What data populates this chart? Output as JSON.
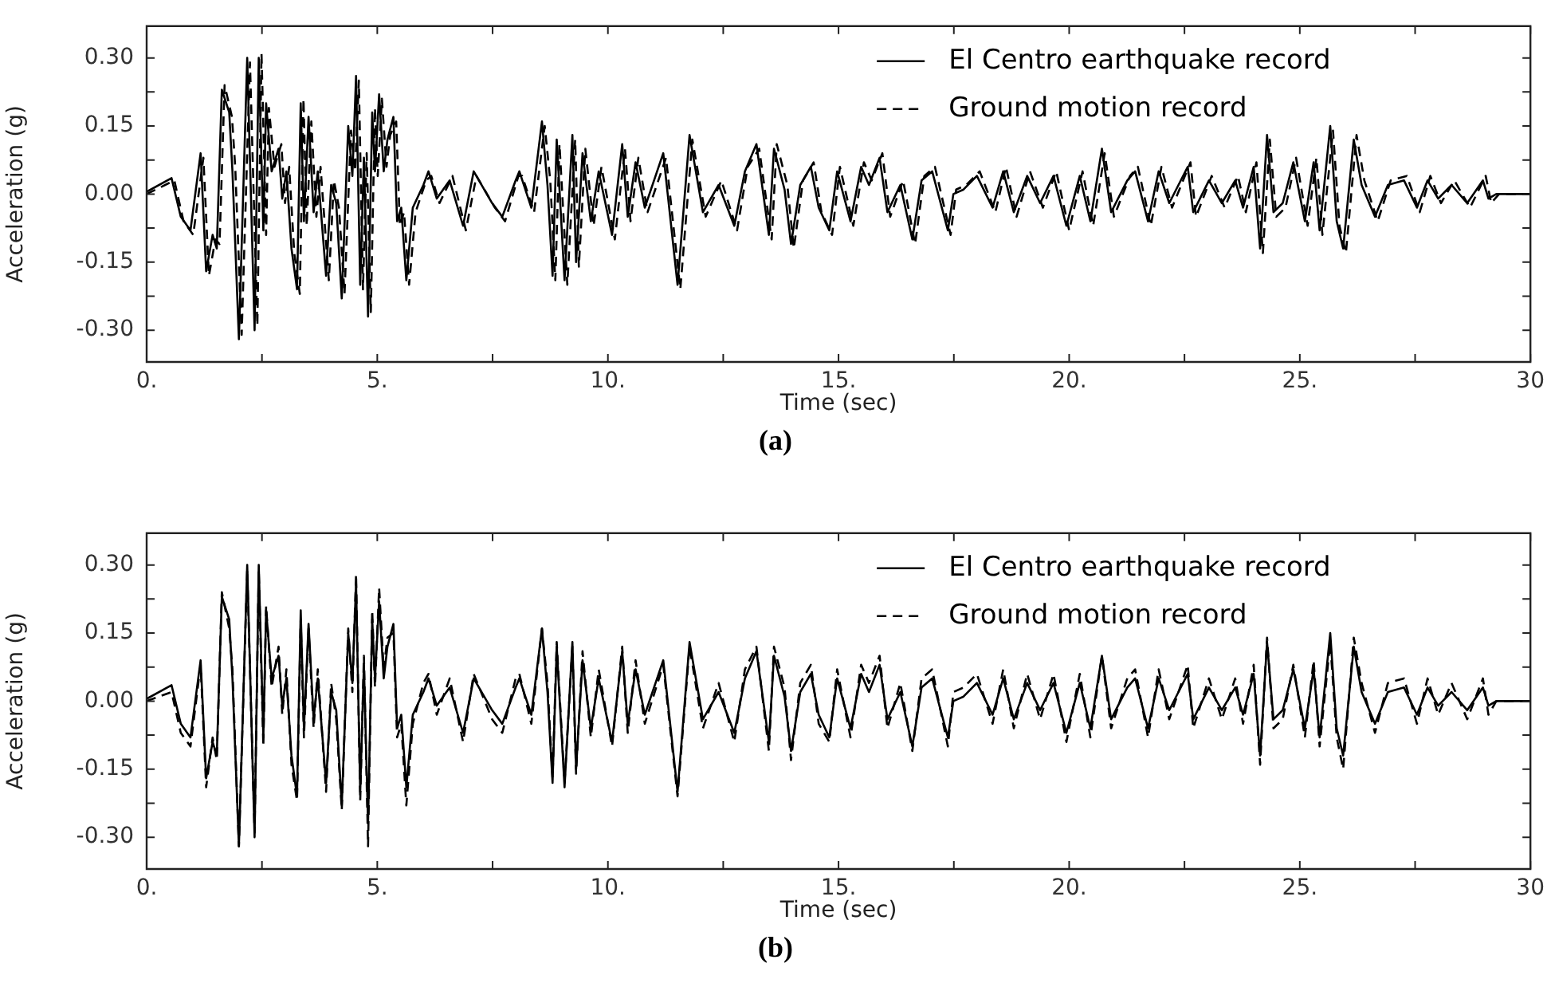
{
  "chart_data": [
    {
      "type": "line",
      "xlabel": "Time (sec)",
      "ylabel": "Acceleration (g)",
      "annotations": [
        "(a)"
      ],
      "xlim": [
        0,
        30
      ],
      "ylim": [
        -0.37,
        0.37
      ],
      "xticks": [
        {
          "value": 0,
          "label": "0."
        },
        {
          "value": 2.5,
          "label": null
        },
        {
          "value": 5,
          "label": "5."
        },
        {
          "value": 7.5,
          "label": null
        },
        {
          "value": 10,
          "label": "10."
        },
        {
          "value": 12.5,
          "label": null
        },
        {
          "value": 15,
          "label": "15."
        },
        {
          "value": 17.5,
          "label": null
        },
        {
          "value": 20,
          "label": "20."
        },
        {
          "value": 22.5,
          "label": null
        },
        {
          "value": 25,
          "label": "25."
        },
        {
          "value": 27.5,
          "label": null
        },
        {
          "value": 30,
          "label": "30"
        }
      ],
      "yticks": [
        {
          "value": -0.3,
          "label": "-0.30"
        },
        {
          "value": -0.225,
          "label": null
        },
        {
          "value": -0.15,
          "label": "-0.15"
        },
        {
          "value": -0.075,
          "label": null
        },
        {
          "value": 0,
          "label": "0.00"
        },
        {
          "value": 0.075,
          "label": null
        },
        {
          "value": 0.15,
          "label": "0.15"
        },
        {
          "value": 0.225,
          "label": null
        },
        {
          "value": 0.3,
          "label": "0.30"
        }
      ],
      "grid": false,
      "legend": "top right",
      "marker": "none",
      "x": [
        0,
        0.54,
        0.74,
        0.95,
        1.17,
        1.29,
        1.43,
        1.52,
        1.63,
        1.79,
        1.86,
        2.0,
        2.18,
        2.34,
        2.43,
        2.53,
        2.59,
        2.71,
        2.86,
        2.94,
        3.03,
        3.14,
        3.26,
        3.34,
        3.41,
        3.51,
        3.62,
        3.71,
        3.89,
        4.0,
        4.11,
        4.23,
        4.37,
        4.46,
        4.54,
        4.63,
        4.71,
        4.8,
        4.89,
        4.95,
        5.04,
        5.14,
        5.22,
        5.35,
        5.43,
        5.52,
        5.63,
        5.77,
        6.0,
        6.11,
        6.29,
        6.57,
        6.86,
        7.09,
        7.49,
        7.71,
        8.0,
        8.08,
        8.34,
        8.57,
        8.69,
        8.8,
        8.89,
        9.06,
        9.23,
        9.31,
        9.45,
        9.63,
        9.8,
        10.09,
        10.31,
        10.43,
        10.6,
        10.8,
        11.2,
        11.51,
        11.77,
        12.06,
        12.4,
        12.74,
        12.97,
        13.22,
        13.49,
        13.6,
        13.83,
        13.97,
        14.17,
        14.4,
        14.57,
        14.8,
        14.97,
        15.26,
        15.49,
        15.66,
        15.89,
        16.06,
        16.34,
        16.6,
        16.8,
        17.03,
        17.37,
        17.49,
        17.71,
        18.0,
        18.34,
        18.57,
        18.8,
        19.09,
        19.37,
        19.66,
        19.94,
        20.23,
        20.46,
        20.71,
        20.91,
        21.26,
        21.43,
        21.71,
        21.94,
        22.17,
        22.57,
        22.69,
        23.03,
        23.31,
        23.6,
        23.77,
        24.0,
        24.14,
        24.29,
        24.43,
        24.63,
        24.86,
        25.11,
        25.3,
        25.43,
        25.66,
        25.8,
        25.94,
        26.17,
        26.34,
        26.63,
        26.91,
        27.26,
        27.54,
        27.77,
        28.0,
        28.29,
        28.63,
        28.97,
        29.09,
        29.26,
        30.0
      ],
      "series": [
        {
          "name": "El Centro earthquake record",
          "color": "#000000",
          "line_style": "solid",
          "values": [
            0.005,
            0.035,
            -0.05,
            -0.08,
            0.09,
            -0.17,
            -0.09,
            -0.12,
            0.23,
            0.18,
            0.05,
            -0.32,
            0.3,
            -0.3,
            0.3,
            -0.08,
            0.2,
            0.05,
            0.1,
            -0.01,
            0.05,
            -0.12,
            -0.21,
            0.2,
            -0.06,
            0.17,
            -0.04,
            0.05,
            -0.18,
            0.02,
            -0.02,
            -0.23,
            0.15,
            0.04,
            0.26,
            -0.2,
            0.08,
            -0.27,
            0.18,
            0.05,
            0.22,
            0.05,
            0.12,
            0.17,
            -0.06,
            -0.03,
            -0.19,
            -0.03,
            0.02,
            0.05,
            -0.01,
            0.03,
            -0.07,
            0.05,
            -0.02,
            -0.05,
            0.03,
            0.05,
            -0.03,
            0.16,
            0.02,
            -0.18,
            0.12,
            -0.19,
            0.13,
            -0.15,
            0.09,
            -0.06,
            0.05,
            -0.09,
            0.11,
            -0.05,
            0.07,
            -0.03,
            0.09,
            -0.2,
            0.13,
            -0.04,
            0.02,
            -0.07,
            0.05,
            0.11,
            -0.09,
            0.1,
            0.01,
            -0.11,
            0.02,
            0.06,
            -0.03,
            -0.08,
            0.05,
            -0.06,
            0.06,
            0.02,
            0.08,
            -0.04,
            0.02,
            -0.1,
            0.03,
            0.05,
            -0.08,
            0.0,
            0.01,
            0.04,
            -0.03,
            0.05,
            -0.04,
            0.04,
            -0.02,
            0.04,
            -0.07,
            0.04,
            -0.06,
            0.1,
            -0.04,
            0.03,
            0.05,
            -0.06,
            0.05,
            -0.02,
            0.06,
            -0.04,
            0.03,
            -0.02,
            0.03,
            -0.03,
            0.06,
            -0.12,
            0.13,
            -0.04,
            -0.02,
            0.07,
            -0.06,
            0.07,
            -0.08,
            0.15,
            -0.06,
            -0.12,
            0.12,
            0.02,
            -0.05,
            0.02,
            0.03,
            -0.03,
            0.03,
            -0.01,
            0.02,
            -0.02,
            0.03,
            -0.01,
            0.0,
            0.0
          ]
        },
        {
          "name": "Ground motion record",
          "color": "#000000",
          "line_style": "dashed",
          "x": [
            0,
            0.6,
            0.8,
            1.01,
            1.23,
            1.35,
            1.49,
            1.58,
            1.69,
            1.85,
            1.92,
            2.06,
            2.24,
            2.4,
            2.49,
            2.59,
            2.65,
            2.77,
            2.92,
            3.0,
            3.09,
            3.2,
            3.32,
            3.4,
            3.47,
            3.57,
            3.68,
            3.77,
            3.95,
            4.06,
            4.17,
            4.29,
            4.43,
            4.52,
            4.6,
            4.69,
            4.77,
            4.86,
            4.95,
            5.01,
            5.1,
            5.2,
            5.28,
            5.41,
            5.49,
            5.58,
            5.69,
            5.83,
            6.06,
            6.17,
            6.35,
            6.63,
            6.92,
            7.15,
            7.55,
            7.77,
            8.06,
            8.14,
            8.4,
            8.63,
            8.75,
            8.86,
            8.95,
            9.12,
            9.29,
            9.37,
            9.51,
            9.69,
            9.86,
            10.15,
            10.37,
            10.49,
            10.66,
            10.86,
            11.26,
            11.57,
            11.83,
            12.12,
            12.46,
            12.8,
            13.03,
            13.28,
            13.55,
            13.66,
            13.89,
            14.03,
            14.23,
            14.46,
            14.63,
            14.86,
            15.03,
            15.32,
            15.55,
            15.72,
            15.95,
            16.12,
            16.4,
            16.66,
            16.86,
            17.09,
            17.43,
            17.55,
            17.77,
            18.06,
            18.4,
            18.63,
            18.86,
            19.15,
            19.43,
            19.72,
            20.0,
            20.29,
            20.52,
            20.77,
            20.97,
            21.32,
            21.49,
            21.77,
            22.0,
            22.23,
            22.63,
            22.75,
            23.09,
            23.37,
            23.66,
            23.83,
            24.06,
            24.2,
            24.35,
            24.49,
            24.69,
            24.92,
            25.17,
            25.36,
            25.49,
            25.72,
            25.86,
            26.0,
            26.23,
            26.4,
            26.69,
            26.97,
            27.32,
            27.6,
            27.83,
            28.06,
            28.35,
            28.69,
            29.03,
            29.15,
            29.32,
            30.0
          ],
          "values": [
            0.0,
            0.03,
            -0.06,
            -0.09,
            0.08,
            -0.18,
            -0.1,
            -0.11,
            0.24,
            0.17,
            0.06,
            -0.31,
            0.29,
            -0.29,
            0.31,
            -0.09,
            0.19,
            0.06,
            0.11,
            -0.02,
            0.06,
            -0.13,
            -0.22,
            0.21,
            -0.07,
            0.16,
            -0.05,
            0.06,
            -0.19,
            0.03,
            -0.03,
            -0.22,
            0.14,
            0.05,
            0.25,
            -0.21,
            0.09,
            -0.26,
            0.19,
            0.04,
            0.21,
            0.06,
            0.13,
            0.16,
            -0.07,
            -0.04,
            -0.2,
            -0.04,
            0.03,
            0.04,
            -0.02,
            0.04,
            -0.08,
            0.04,
            -0.03,
            -0.06,
            0.04,
            0.04,
            -0.04,
            0.15,
            0.03,
            -0.19,
            0.11,
            -0.2,
            0.12,
            -0.16,
            0.1,
            -0.07,
            0.06,
            -0.1,
            0.1,
            -0.06,
            0.08,
            -0.04,
            0.08,
            -0.21,
            0.12,
            -0.05,
            0.03,
            -0.08,
            0.06,
            0.1,
            -0.1,
            0.11,
            0.02,
            -0.12,
            0.03,
            0.07,
            -0.04,
            -0.09,
            0.06,
            -0.07,
            0.07,
            0.03,
            0.09,
            -0.05,
            0.03,
            -0.11,
            0.04,
            0.06,
            -0.09,
            0.01,
            0.02,
            0.05,
            -0.04,
            0.06,
            -0.05,
            0.05,
            -0.03,
            0.05,
            -0.08,
            0.05,
            -0.07,
            0.09,
            -0.05,
            0.04,
            0.06,
            -0.07,
            0.06,
            -0.03,
            0.07,
            -0.05,
            0.04,
            -0.03,
            0.04,
            -0.04,
            0.07,
            -0.13,
            0.12,
            -0.05,
            -0.03,
            0.08,
            -0.07,
            0.08,
            -0.09,
            0.14,
            -0.07,
            -0.13,
            0.13,
            0.03,
            -0.06,
            0.03,
            0.04,
            -0.04,
            0.04,
            -0.02,
            0.03,
            -0.03,
            0.04,
            -0.02,
            0.0,
            0.0
          ]
        }
      ]
    },
    {
      "type": "line",
      "xlabel": "Time (sec)",
      "ylabel": "Acceleration (g)",
      "annotations": [
        "(b)"
      ],
      "xlim": [
        0,
        30
      ],
      "ylim": [
        -0.37,
        0.37
      ],
      "xticks": [
        {
          "value": 0,
          "label": "0."
        },
        {
          "value": 2.5,
          "label": null
        },
        {
          "value": 5,
          "label": "5."
        },
        {
          "value": 7.5,
          "label": null
        },
        {
          "value": 10,
          "label": "10."
        },
        {
          "value": 12.5,
          "label": null
        },
        {
          "value": 15,
          "label": "15."
        },
        {
          "value": 17.5,
          "label": null
        },
        {
          "value": 20,
          "label": "20."
        },
        {
          "value": 22.5,
          "label": null
        },
        {
          "value": 25,
          "label": "25."
        },
        {
          "value": 27.5,
          "label": null
        },
        {
          "value": 30,
          "label": "30"
        }
      ],
      "yticks": [
        {
          "value": -0.3,
          "label": "-0.30"
        },
        {
          "value": -0.225,
          "label": null
        },
        {
          "value": -0.15,
          "label": "-0.15"
        },
        {
          "value": -0.075,
          "label": null
        },
        {
          "value": 0,
          "label": "0.00"
        },
        {
          "value": 0.075,
          "label": null
        },
        {
          "value": 0.15,
          "label": "0.15"
        },
        {
          "value": 0.225,
          "label": null
        },
        {
          "value": 0.3,
          "label": "0.30"
        }
      ],
      "grid": false,
      "legend": "top right",
      "marker": "none",
      "x": [
        0,
        0.54,
        0.74,
        0.95,
        1.17,
        1.29,
        1.43,
        1.52,
        1.63,
        1.79,
        1.86,
        2.0,
        2.18,
        2.34,
        2.43,
        2.53,
        2.59,
        2.71,
        2.86,
        2.94,
        3.03,
        3.14,
        3.26,
        3.34,
        3.41,
        3.51,
        3.62,
        3.71,
        3.89,
        4.0,
        4.11,
        4.23,
        4.37,
        4.46,
        4.54,
        4.63,
        4.71,
        4.8,
        4.89,
        4.95,
        5.04,
        5.14,
        5.22,
        5.35,
        5.43,
        5.52,
        5.63,
        5.77,
        6.0,
        6.11,
        6.29,
        6.57,
        6.86,
        7.09,
        7.49,
        7.71,
        8.0,
        8.08,
        8.34,
        8.57,
        8.69,
        8.8,
        8.89,
        9.06,
        9.23,
        9.31,
        9.45,
        9.63,
        9.8,
        10.09,
        10.31,
        10.43,
        10.6,
        10.8,
        11.2,
        11.51,
        11.77,
        12.06,
        12.4,
        12.74,
        12.97,
        13.22,
        13.49,
        13.6,
        13.83,
        13.97,
        14.17,
        14.4,
        14.57,
        14.8,
        14.97,
        15.26,
        15.49,
        15.66,
        15.89,
        16.06,
        16.34,
        16.6,
        16.8,
        17.03,
        17.37,
        17.49,
        17.71,
        18.0,
        18.34,
        18.57,
        18.8,
        19.09,
        19.37,
        19.66,
        19.94,
        20.23,
        20.46,
        20.71,
        20.91,
        21.26,
        21.43,
        21.71,
        21.94,
        22.17,
        22.57,
        22.69,
        23.03,
        23.31,
        23.6,
        23.77,
        24.0,
        24.14,
        24.29,
        24.43,
        24.63,
        24.86,
        25.11,
        25.3,
        25.43,
        25.66,
        25.8,
        25.94,
        26.17,
        26.34,
        26.63,
        26.91,
        27.26,
        27.54,
        27.77,
        28.0,
        28.29,
        28.63,
        28.97,
        29.09,
        29.26,
        30.0
      ],
      "series": [
        {
          "name": "El Centro earthquake record",
          "color": "#000000",
          "line_style": "solid",
          "values": [
            0.005,
            0.035,
            -0.05,
            -0.08,
            0.09,
            -0.17,
            -0.09,
            -0.12,
            0.23,
            0.18,
            0.05,
            -0.32,
            0.3,
            -0.3,
            0.3,
            -0.08,
            0.2,
            0.05,
            0.1,
            -0.01,
            0.05,
            -0.12,
            -0.21,
            0.2,
            -0.06,
            0.17,
            -0.04,
            0.05,
            -0.18,
            0.02,
            -0.02,
            -0.23,
            0.15,
            0.04,
            0.26,
            -0.2,
            0.08,
            -0.27,
            0.18,
            0.05,
            0.22,
            0.05,
            0.12,
            0.17,
            -0.06,
            -0.03,
            -0.19,
            -0.03,
            0.02,
            0.05,
            -0.01,
            0.03,
            -0.07,
            0.05,
            -0.02,
            -0.05,
            0.03,
            0.05,
            -0.03,
            0.16,
            0.02,
            -0.18,
            0.12,
            -0.19,
            0.13,
            -0.15,
            0.09,
            -0.06,
            0.05,
            -0.09,
            0.11,
            -0.05,
            0.07,
            -0.03,
            0.09,
            -0.2,
            0.13,
            -0.04,
            0.02,
            -0.07,
            0.05,
            0.11,
            -0.09,
            0.1,
            0.01,
            -0.11,
            0.02,
            0.06,
            -0.03,
            -0.08,
            0.05,
            -0.06,
            0.06,
            0.02,
            0.08,
            -0.04,
            0.02,
            -0.1,
            0.03,
            0.05,
            -0.08,
            0.0,
            0.01,
            0.04,
            -0.03,
            0.05,
            -0.04,
            0.04,
            -0.02,
            0.04,
            -0.07,
            0.04,
            -0.06,
            0.1,
            -0.04,
            0.03,
            0.05,
            -0.06,
            0.05,
            -0.02,
            0.06,
            -0.04,
            0.03,
            -0.02,
            0.03,
            -0.03,
            0.06,
            -0.12,
            0.13,
            -0.04,
            -0.02,
            0.07,
            -0.06,
            0.07,
            -0.08,
            0.15,
            -0.06,
            -0.12,
            0.12,
            0.02,
            -0.05,
            0.02,
            0.03,
            -0.03,
            0.03,
            -0.01,
            0.02,
            -0.02,
            0.03,
            -0.01,
            0.0,
            0.0
          ]
        },
        {
          "name": "Ground motion record",
          "color": "#000000",
          "line_style": "dashed",
          "values": [
            0.0,
            0.02,
            -0.07,
            -0.1,
            0.08,
            -0.19,
            -0.08,
            -0.13,
            0.24,
            0.16,
            0.07,
            -0.32,
            0.29,
            -0.29,
            0.29,
            -0.1,
            0.21,
            0.03,
            0.12,
            -0.03,
            0.07,
            -0.14,
            -0.22,
            0.18,
            -0.08,
            0.16,
            -0.06,
            0.07,
            -0.2,
            0.04,
            -0.04,
            -0.24,
            0.16,
            0.02,
            0.28,
            -0.22,
            0.1,
            -0.32,
            0.2,
            0.03,
            0.25,
            0.07,
            0.14,
            0.15,
            -0.08,
            -0.05,
            -0.23,
            -0.05,
            0.04,
            0.06,
            -0.03,
            0.05,
            -0.09,
            0.06,
            -0.04,
            -0.07,
            0.05,
            0.06,
            -0.05,
            0.16,
            0.04,
            -0.17,
            0.13,
            -0.18,
            0.12,
            -0.16,
            0.11,
            -0.08,
            0.07,
            -0.1,
            0.12,
            -0.07,
            0.09,
            -0.05,
            0.08,
            -0.21,
            0.12,
            -0.06,
            0.04,
            -0.09,
            0.07,
            0.12,
            -0.11,
            0.12,
            0.03,
            -0.13,
            0.04,
            0.08,
            -0.05,
            -0.09,
            0.07,
            -0.08,
            0.08,
            0.04,
            0.1,
            -0.06,
            0.04,
            -0.11,
            0.05,
            0.07,
            -0.1,
            0.02,
            0.03,
            0.06,
            -0.05,
            0.07,
            -0.06,
            0.06,
            -0.04,
            0.06,
            -0.09,
            0.06,
            -0.08,
            0.1,
            -0.06,
            0.05,
            0.07,
            -0.08,
            0.07,
            -0.04,
            0.08,
            -0.06,
            0.05,
            -0.04,
            0.05,
            -0.05,
            0.08,
            -0.14,
            0.14,
            -0.06,
            -0.04,
            0.08,
            -0.08,
            0.09,
            -0.1,
            0.13,
            -0.08,
            -0.15,
            0.14,
            0.04,
            -0.07,
            0.04,
            0.05,
            -0.05,
            0.05,
            -0.03,
            0.04,
            -0.04,
            0.05,
            -0.03,
            0.0,
            0.0
          ]
        }
      ]
    }
  ]
}
